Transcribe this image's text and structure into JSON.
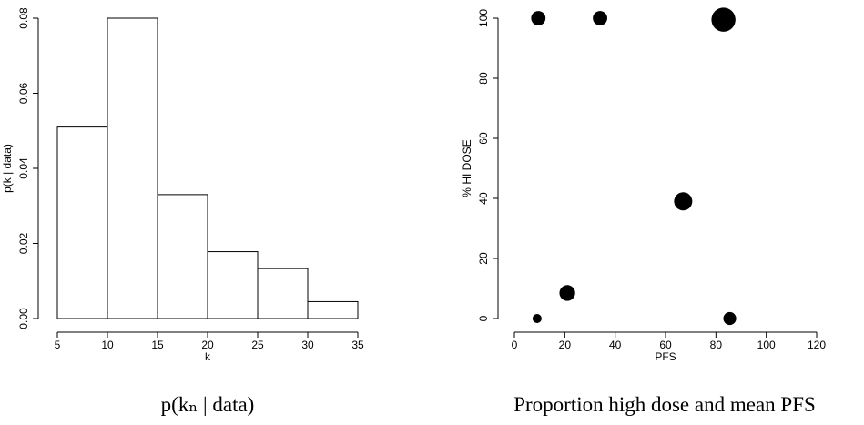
{
  "chart_data": [
    {
      "type": "histogram",
      "caption": "p(kₙ | data)",
      "x_label": "k",
      "y_label": "p(k | data)",
      "bins": [
        5,
        10,
        15,
        20,
        25,
        30,
        35
      ],
      "values": [
        0.051,
        0.08,
        0.033,
        0.0178,
        0.0133,
        0.0045
      ],
      "color": "#ffffff",
      "xlim": [
        5,
        35
      ],
      "xticks": [
        5,
        10,
        15,
        20,
        25,
        30,
        35
      ],
      "ylim": [
        0,
        0.08
      ],
      "yticks": [
        {
          "value": 0,
          "label": "0.00"
        },
        0.02,
        0.04,
        0.06,
        0.08
      ]
    },
    {
      "type": "scatter",
      "caption": "Proportion high dose and mean PFS",
      "x_label": "PFS",
      "y_label": "% HI DOSE",
      "x": [
        9,
        9.5,
        21,
        34,
        67,
        83,
        85.5
      ],
      "values": [
        0,
        100,
        8.5,
        100,
        39,
        99.5,
        0
      ],
      "sizes": [
        1,
        2.5,
        3,
        2.5,
        4,
        7,
        2
      ],
      "color": "#000000",
      "xlim": [
        0,
        120
      ],
      "xticks": [
        0,
        20,
        40,
        60,
        80,
        100,
        120
      ],
      "ylim": [
        0,
        100
      ],
      "yticks": [
        0,
        20,
        40,
        60,
        80,
        100
      ]
    }
  ]
}
